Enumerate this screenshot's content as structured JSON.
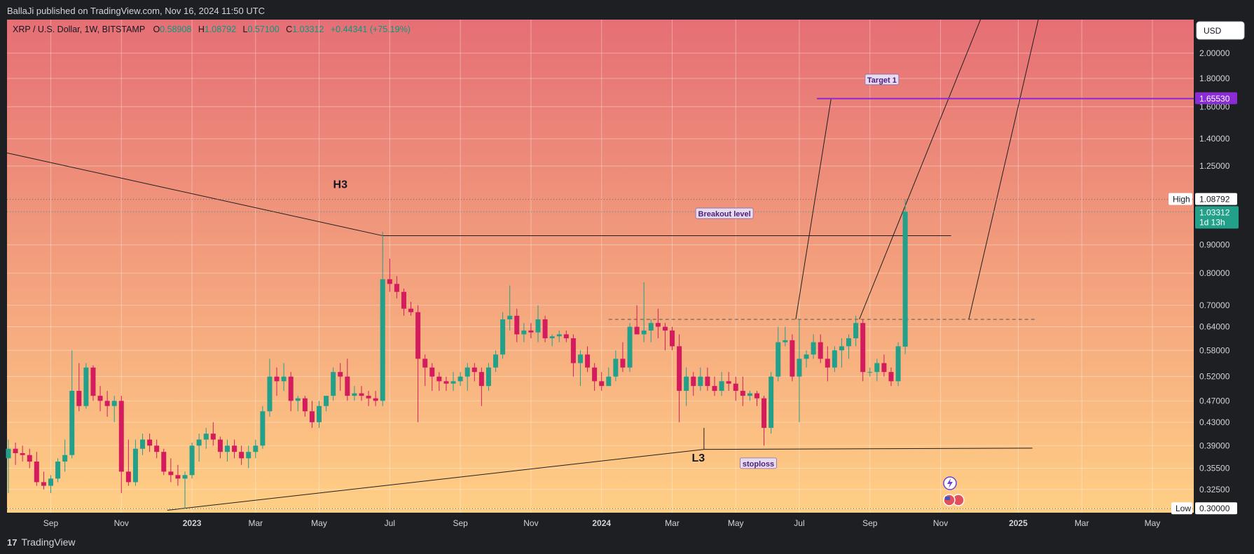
{
  "header": {
    "published": "BallaJi published on TradingView.com, Nov 16, 2024 11:50 UTC"
  },
  "footer": {
    "brand": "TradingView",
    "logo_glyph": "17"
  },
  "legend": {
    "symbol": "XRP / U.S. Dollar, 1W, BITSTAMP",
    "o_label": "O",
    "o_value": "0.58908",
    "h_label": "H",
    "h_value": "1.08792",
    "l_label": "L",
    "l_value": "0.57100",
    "c_label": "C",
    "c_value": "1.03312",
    "change": "+0.44341 (+75.19%)"
  },
  "colors": {
    "up": "#22a08a",
    "down": "#d41b5e",
    "bg_top": "#e66f75",
    "bg_bottom": "#ffcf85",
    "target": "#8a2bd6"
  },
  "chart_data": {
    "type": "candlestick",
    "title": "XRP / U.S. Dollar, 1W, BITSTAMP",
    "currency": "USD",
    "y_scale": "log",
    "ylim": [
      0.295,
      2.3
    ],
    "y_ticks": [
      "0.30000",
      "0.32500",
      "0.35500",
      "0.39000",
      "0.43000",
      "0.47000",
      "0.52000",
      "0.58000",
      "0.64000",
      "0.70000",
      "0.80000",
      "0.90000",
      "1.25000",
      "1.40000",
      "1.60000",
      "1.80000",
      "2.00000"
    ],
    "x_tick_labels": [
      "Sep",
      "Nov",
      "2023",
      "Mar",
      "May",
      "Jul",
      "Sep",
      "Nov",
      "2024",
      "Mar",
      "May",
      "Jul",
      "Sep",
      "Nov",
      "2025",
      "Mar",
      "May"
    ],
    "x_tick_weeks": [
      6,
      16,
      26,
      35,
      44,
      54,
      64,
      74,
      84,
      94,
      103,
      112,
      122,
      132,
      143,
      152,
      162
    ],
    "candles": [
      [
        0.37,
        0.4,
        0.32,
        0.385
      ],
      [
        0.385,
        0.395,
        0.36,
        0.378
      ],
      [
        0.378,
        0.39,
        0.365,
        0.375
      ],
      [
        0.375,
        0.385,
        0.355,
        0.365
      ],
      [
        0.365,
        0.38,
        0.33,
        0.335
      ],
      [
        0.335,
        0.35,
        0.325,
        0.33
      ],
      [
        0.33,
        0.345,
        0.32,
        0.34
      ],
      [
        0.34,
        0.37,
        0.335,
        0.365
      ],
      [
        0.365,
        0.4,
        0.35,
        0.375
      ],
      [
        0.375,
        0.58,
        0.37,
        0.49
      ],
      [
        0.49,
        0.55,
        0.45,
        0.46
      ],
      [
        0.46,
        0.55,
        0.455,
        0.54
      ],
      [
        0.54,
        0.545,
        0.47,
        0.48
      ],
      [
        0.48,
        0.5,
        0.45,
        0.47
      ],
      [
        0.47,
        0.49,
        0.44,
        0.46
      ],
      [
        0.46,
        0.48,
        0.43,
        0.47
      ],
      [
        0.47,
        0.48,
        0.32,
        0.35
      ],
      [
        0.35,
        0.4,
        0.33,
        0.335
      ],
      [
        0.335,
        0.4,
        0.33,
        0.385
      ],
      [
        0.385,
        0.41,
        0.375,
        0.4
      ],
      [
        0.4,
        0.41,
        0.38,
        0.39
      ],
      [
        0.39,
        0.4,
        0.37,
        0.38
      ],
      [
        0.38,
        0.385,
        0.345,
        0.35
      ],
      [
        0.35,
        0.37,
        0.335,
        0.345
      ],
      [
        0.345,
        0.36,
        0.33,
        0.34
      ],
      [
        0.34,
        0.35,
        0.3,
        0.345
      ],
      [
        0.345,
        0.395,
        0.34,
        0.39
      ],
      [
        0.39,
        0.41,
        0.365,
        0.4
      ],
      [
        0.4,
        0.42,
        0.385,
        0.41
      ],
      [
        0.41,
        0.43,
        0.39,
        0.4
      ],
      [
        0.4,
        0.405,
        0.37,
        0.38
      ],
      [
        0.38,
        0.4,
        0.365,
        0.39
      ],
      [
        0.39,
        0.4,
        0.37,
        0.38
      ],
      [
        0.38,
        0.39,
        0.36,
        0.37
      ],
      [
        0.37,
        0.39,
        0.355,
        0.38
      ],
      [
        0.38,
        0.4,
        0.37,
        0.39
      ],
      [
        0.39,
        0.46,
        0.385,
        0.45
      ],
      [
        0.45,
        0.56,
        0.44,
        0.52
      ],
      [
        0.52,
        0.54,
        0.48,
        0.51
      ],
      [
        0.51,
        0.55,
        0.49,
        0.52
      ],
      [
        0.52,
        0.53,
        0.45,
        0.47
      ],
      [
        0.47,
        0.48,
        0.45,
        0.475
      ],
      [
        0.475,
        0.48,
        0.44,
        0.45
      ],
      [
        0.45,
        0.47,
        0.42,
        0.43
      ],
      [
        0.43,
        0.47,
        0.42,
        0.46
      ],
      [
        0.46,
        0.48,
        0.45,
        0.48
      ],
      [
        0.48,
        0.54,
        0.47,
        0.53
      ],
      [
        0.53,
        0.55,
        0.49,
        0.52
      ],
      [
        0.52,
        0.56,
        0.47,
        0.48
      ],
      [
        0.48,
        0.5,
        0.47,
        0.485
      ],
      [
        0.485,
        0.5,
        0.47,
        0.48
      ],
      [
        0.48,
        0.49,
        0.46,
        0.475
      ],
      [
        0.475,
        0.49,
        0.46,
        0.47
      ],
      [
        0.47,
        0.95,
        0.46,
        0.78
      ],
      [
        0.78,
        0.85,
        0.74,
        0.765
      ],
      [
        0.765,
        0.79,
        0.72,
        0.74
      ],
      [
        0.74,
        0.75,
        0.67,
        0.69
      ],
      [
        0.69,
        0.71,
        0.67,
        0.68
      ],
      [
        0.68,
        0.7,
        0.43,
        0.56
      ],
      [
        0.56,
        0.57,
        0.5,
        0.54
      ],
      [
        0.54,
        0.55,
        0.49,
        0.52
      ],
      [
        0.52,
        0.53,
        0.49,
        0.51
      ],
      [
        0.51,
        0.52,
        0.49,
        0.505
      ],
      [
        0.505,
        0.53,
        0.49,
        0.51
      ],
      [
        0.51,
        0.53,
        0.5,
        0.52
      ],
      [
        0.52,
        0.55,
        0.49,
        0.54
      ],
      [
        0.54,
        0.55,
        0.51,
        0.53
      ],
      [
        0.53,
        0.54,
        0.46,
        0.5
      ],
      [
        0.5,
        0.55,
        0.49,
        0.54
      ],
      [
        0.54,
        0.58,
        0.53,
        0.57
      ],
      [
        0.57,
        0.68,
        0.56,
        0.66
      ],
      [
        0.66,
        0.76,
        0.63,
        0.67
      ],
      [
        0.67,
        0.69,
        0.6,
        0.62
      ],
      [
        0.62,
        0.65,
        0.6,
        0.63
      ],
      [
        0.63,
        0.65,
        0.61,
        0.625
      ],
      [
        0.625,
        0.7,
        0.6,
        0.66
      ],
      [
        0.66,
        0.67,
        0.6,
        0.61
      ],
      [
        0.61,
        0.62,
        0.59,
        0.615
      ],
      [
        0.615,
        0.63,
        0.6,
        0.62
      ],
      [
        0.62,
        0.63,
        0.6,
        0.61
      ],
      [
        0.61,
        0.62,
        0.52,
        0.55
      ],
      [
        0.55,
        0.58,
        0.5,
        0.57
      ],
      [
        0.57,
        0.59,
        0.53,
        0.54
      ],
      [
        0.54,
        0.55,
        0.49,
        0.51
      ],
      [
        0.51,
        0.53,
        0.49,
        0.5
      ],
      [
        0.5,
        0.54,
        0.5,
        0.52
      ],
      [
        0.52,
        0.58,
        0.51,
        0.56
      ],
      [
        0.56,
        0.6,
        0.53,
        0.54
      ],
      [
        0.54,
        0.65,
        0.53,
        0.64
      ],
      [
        0.64,
        0.7,
        0.62,
        0.62
      ],
      [
        0.62,
        0.77,
        0.6,
        0.63
      ],
      [
        0.63,
        0.66,
        0.6,
        0.65
      ],
      [
        0.65,
        0.69,
        0.61,
        0.64
      ],
      [
        0.64,
        0.65,
        0.58,
        0.63
      ],
      [
        0.63,
        0.64,
        0.58,
        0.59
      ],
      [
        0.59,
        0.62,
        0.43,
        0.49
      ],
      [
        0.49,
        0.54,
        0.46,
        0.52
      ],
      [
        0.52,
        0.53,
        0.48,
        0.5
      ],
      [
        0.5,
        0.54,
        0.49,
        0.52
      ],
      [
        0.52,
        0.54,
        0.49,
        0.5
      ],
      [
        0.5,
        0.52,
        0.48,
        0.49
      ],
      [
        0.49,
        0.53,
        0.48,
        0.51
      ],
      [
        0.51,
        0.53,
        0.49,
        0.505
      ],
      [
        0.505,
        0.52,
        0.47,
        0.49
      ],
      [
        0.49,
        0.52,
        0.46,
        0.48
      ],
      [
        0.48,
        0.49,
        0.47,
        0.485
      ],
      [
        0.485,
        0.49,
        0.46,
        0.475
      ],
      [
        0.475,
        0.48,
        0.39,
        0.42
      ],
      [
        0.42,
        0.53,
        0.41,
        0.52
      ],
      [
        0.52,
        0.64,
        0.51,
        0.6
      ],
      [
        0.6,
        0.64,
        0.59,
        0.605
      ],
      [
        0.605,
        0.62,
        0.51,
        0.52
      ],
      [
        0.52,
        0.66,
        0.43,
        0.56
      ],
      [
        0.56,
        0.58,
        0.54,
        0.57
      ],
      [
        0.57,
        0.62,
        0.56,
        0.6
      ],
      [
        0.6,
        0.62,
        0.55,
        0.56
      ],
      [
        0.56,
        0.59,
        0.51,
        0.54
      ],
      [
        0.54,
        0.59,
        0.53,
        0.58
      ],
      [
        0.58,
        0.61,
        0.54,
        0.59
      ],
      [
        0.59,
        0.62,
        0.56,
        0.61
      ],
      [
        0.61,
        0.67,
        0.59,
        0.65
      ],
      [
        0.65,
        0.66,
        0.51,
        0.53
      ],
      [
        0.53,
        0.54,
        0.52,
        0.53
      ],
      [
        0.53,
        0.56,
        0.51,
        0.55
      ],
      [
        0.55,
        0.57,
        0.52,
        0.53
      ],
      [
        0.53,
        0.54,
        0.5,
        0.51
      ],
      [
        0.51,
        0.6,
        0.5,
        0.59
      ],
      [
        0.589,
        1.088,
        0.571,
        1.033
      ]
    ],
    "first_candle_week": 0,
    "annotations": {
      "h3": "H3",
      "l3": "L3",
      "breakout": "Breakout level",
      "stoploss": "stoploss",
      "target": "Target 1",
      "target_price": 1.6553,
      "breakout_price": 0.935,
      "dashed_price": 0.66,
      "price_label": "1.03312",
      "price_countdown": "1d 13h",
      "high_tag": "High",
      "high_value": "1.08792",
      "low_tag": "Low",
      "low_value": "0.30000",
      "target_value": "1.65530",
      "currency_btn": "USD"
    }
  }
}
